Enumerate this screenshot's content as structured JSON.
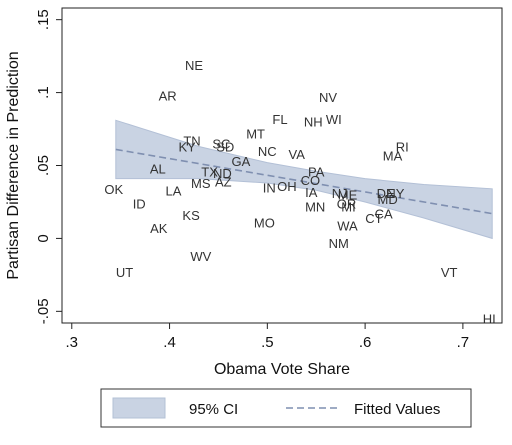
{
  "chart_data": {
    "type": "scatter",
    "title": "",
    "xlabel": "Obama Vote Share",
    "ylabel": "Partisan Difference in Prediction",
    "xlim": [
      0.29,
      0.74
    ],
    "ylim": [
      -0.058,
      0.158
    ],
    "x_ticks": [
      0.3,
      0.4,
      0.5,
      0.6,
      0.7
    ],
    "x_tick_labels": [
      ".3",
      ".4",
      ".5",
      ".6",
      ".7"
    ],
    "y_ticks": [
      -0.05,
      0,
      0.05,
      0.1,
      0.15
    ],
    "y_tick_labels": [
      "-.05",
      "0",
      ".05",
      ".1",
      ".15"
    ],
    "grid": false,
    "legend_position": "bottom",
    "legend": [
      "95% CI",
      "Fitted Values"
    ],
    "colors": {
      "ci_fill": "#c9d3e3",
      "ci_stroke": "#b3c0d6",
      "fit_line": "#7f8fb0",
      "text": "#111111",
      "labels": "#333333"
    },
    "fitted_line": {
      "x": [
        0.345,
        0.73
      ],
      "y": [
        0.061,
        0.017
      ]
    },
    "ci_band": {
      "x": [
        0.345,
        0.43,
        0.5,
        0.55,
        0.6,
        0.66,
        0.73
      ],
      "upper": [
        0.081,
        0.063,
        0.052,
        0.046,
        0.041,
        0.037,
        0.034
      ],
      "lower": [
        0.041,
        0.041,
        0.038,
        0.033,
        0.025,
        0.014,
        0.0
      ]
    },
    "points": [
      {
        "label": "NE",
        "x": 0.425,
        "y": 0.119
      },
      {
        "label": "AR",
        "x": 0.398,
        "y": 0.098
      },
      {
        "label": "NV",
        "x": 0.562,
        "y": 0.097
      },
      {
        "label": "FL",
        "x": 0.513,
        "y": 0.082
      },
      {
        "label": "NH",
        "x": 0.547,
        "y": 0.08
      },
      {
        "label": "WI",
        "x": 0.568,
        "y": 0.082
      },
      {
        "label": "MT",
        "x": 0.488,
        "y": 0.072
      },
      {
        "label": "TN",
        "x": 0.423,
        "y": 0.067
      },
      {
        "label": "KY",
        "x": 0.418,
        "y": 0.063
      },
      {
        "label": "SC",
        "x": 0.453,
        "y": 0.065
      },
      {
        "label": "SD",
        "x": 0.457,
        "y": 0.063
      },
      {
        "label": "RI",
        "x": 0.638,
        "y": 0.063
      },
      {
        "label": "NC",
        "x": 0.5,
        "y": 0.06
      },
      {
        "label": "VA",
        "x": 0.53,
        "y": 0.058
      },
      {
        "label": "MA",
        "x": 0.628,
        "y": 0.057
      },
      {
        "label": "GA",
        "x": 0.473,
        "y": 0.053
      },
      {
        "label": "AL",
        "x": 0.388,
        "y": 0.048
      },
      {
        "label": "TX",
        "x": 0.441,
        "y": 0.046
      },
      {
        "label": "ND",
        "x": 0.454,
        "y": 0.045
      },
      {
        "label": "PA",
        "x": 0.55,
        "y": 0.046
      },
      {
        "label": "MS",
        "x": 0.432,
        "y": 0.038
      },
      {
        "label": "AZ",
        "x": 0.455,
        "y": 0.039
      },
      {
        "label": "CO",
        "x": 0.544,
        "y": 0.04
      },
      {
        "label": "LA",
        "x": 0.404,
        "y": 0.033
      },
      {
        "label": "IN",
        "x": 0.502,
        "y": 0.035
      },
      {
        "label": "OH",
        "x": 0.52,
        "y": 0.036
      },
      {
        "label": "OK",
        "x": 0.343,
        "y": 0.034
      },
      {
        "label": "IA",
        "x": 0.545,
        "y": 0.032
      },
      {
        "label": "NJ",
        "x": 0.574,
        "y": 0.031
      },
      {
        "label": "ME",
        "x": 0.582,
        "y": 0.03
      },
      {
        "label": "DE",
        "x": 0.621,
        "y": 0.031
      },
      {
        "label": "NY",
        "x": 0.631,
        "y": 0.031
      },
      {
        "label": "MD",
        "x": 0.623,
        "y": 0.027
      },
      {
        "label": "OR",
        "x": 0.581,
        "y": 0.024
      },
      {
        "label": "MI",
        "x": 0.583,
        "y": 0.022
      },
      {
        "label": "ID",
        "x": 0.369,
        "y": 0.024
      },
      {
        "label": "MN",
        "x": 0.549,
        "y": 0.022
      },
      {
        "label": "CT",
        "x": 0.609,
        "y": 0.014
      },
      {
        "label": "CA",
        "x": 0.619,
        "y": 0.017
      },
      {
        "label": "KS",
        "x": 0.422,
        "y": 0.016
      },
      {
        "label": "MO",
        "x": 0.497,
        "y": 0.011
      },
      {
        "label": "WA",
        "x": 0.582,
        "y": 0.009
      },
      {
        "label": "AK",
        "x": 0.389,
        "y": 0.007
      },
      {
        "label": "NM",
        "x": 0.573,
        "y": -0.003
      },
      {
        "label": "WV",
        "x": 0.432,
        "y": -0.012
      },
      {
        "label": "UT",
        "x": 0.354,
        "y": -0.023
      },
      {
        "label": "VT",
        "x": 0.686,
        "y": -0.023
      },
      {
        "label": "HI",
        "x": 0.727,
        "y": -0.055
      }
    ]
  }
}
